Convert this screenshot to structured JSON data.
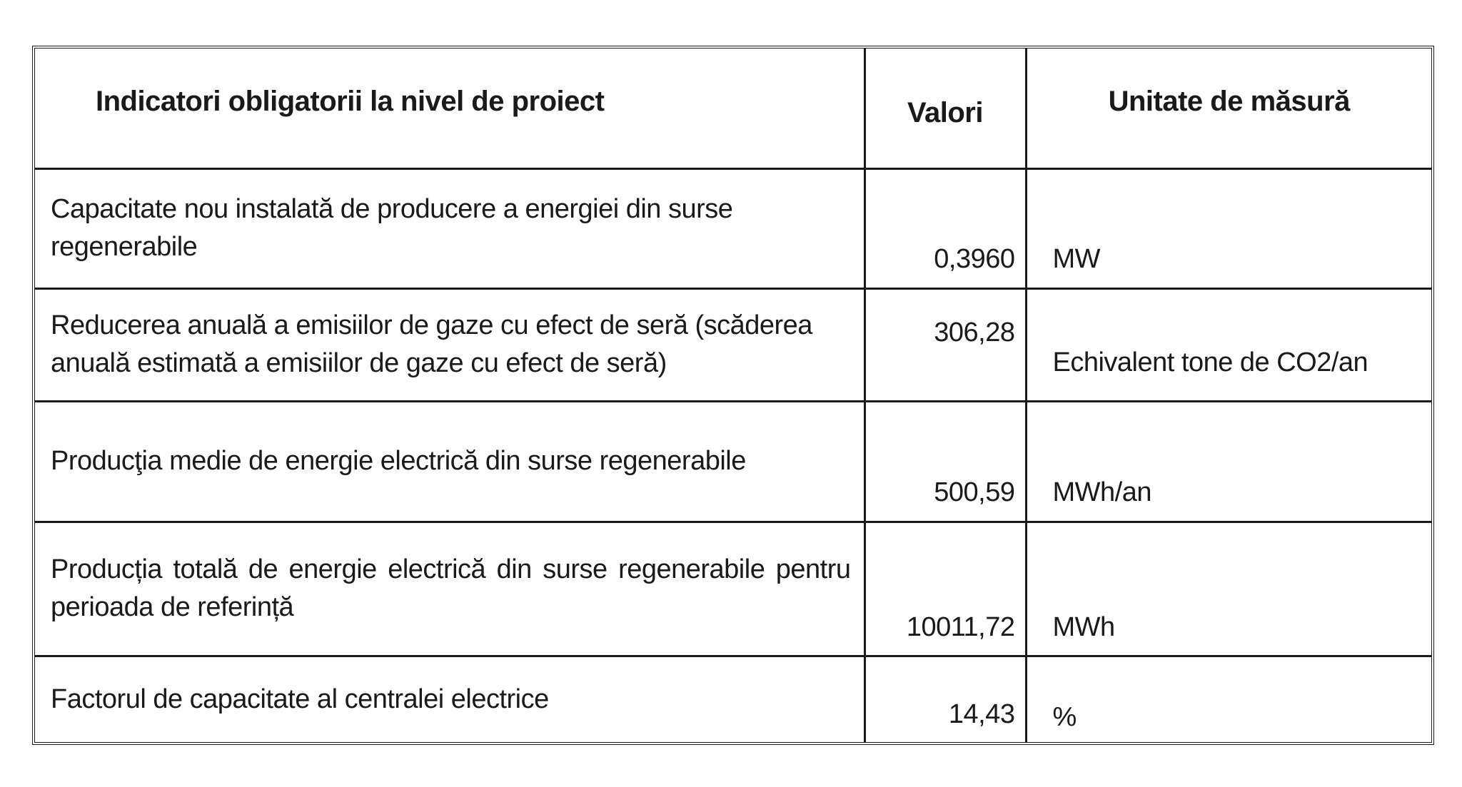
{
  "table": {
    "headers": {
      "indicator": "Indicatori obligatorii la nivel de proiect",
      "values": "Valori",
      "unit": "Unitate de măsură"
    },
    "rows": [
      {
        "indicator": "Capacitate nou instalată de producere a energiei din surse regenerabile",
        "value": "0,3960",
        "unit": "MW"
      },
      {
        "indicator": "Reducerea anuală a emisiilor de gaze cu efect de seră (scăderea anuală estimată  a emisiilor de gaze cu efect de seră)",
        "value": "306,28",
        "unit": "Echivalent tone de CO2/an"
      },
      {
        "indicator": "Producţia medie de energie electrică din surse regenerabile",
        "value": "500,59",
        "unit": "MWh/an"
      },
      {
        "indicator": "Producția totală de energie electrică din surse regenerabile pentru perioada de referință",
        "value": "10011,72",
        "unit": "MWh"
      },
      {
        "indicator": "Factorul de capacitate al centralei electrice",
        "value": "14,43",
        "unit": "%"
      }
    ]
  }
}
